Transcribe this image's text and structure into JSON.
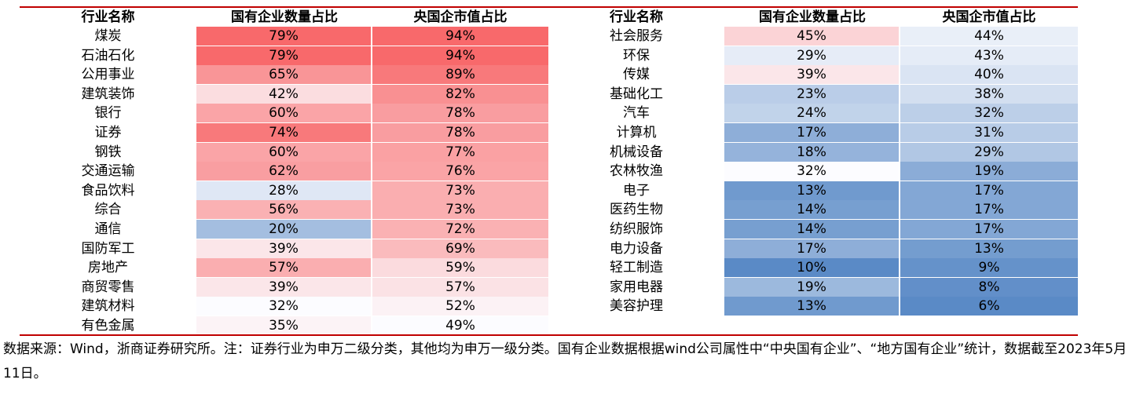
{
  "headers": [
    "行业名称",
    "国有企业数量占比",
    "央国企市值占比"
  ],
  "chart_data": {
    "type": "table",
    "columns": [
      "行业名称",
      "国有企业数量占比",
      "央国企市值占比"
    ],
    "left": [
      {
        "industry": "煤炭",
        "soe_count": "79%",
        "soe_mv": "94%"
      },
      {
        "industry": "石油石化",
        "soe_count": "79%",
        "soe_mv": "94%"
      },
      {
        "industry": "公用事业",
        "soe_count": "65%",
        "soe_mv": "89%"
      },
      {
        "industry": "建筑装饰",
        "soe_count": "42%",
        "soe_mv": "82%"
      },
      {
        "industry": "银行",
        "soe_count": "60%",
        "soe_mv": "78%"
      },
      {
        "industry": "证券",
        "soe_count": "74%",
        "soe_mv": "78%"
      },
      {
        "industry": "钢铁",
        "soe_count": "60%",
        "soe_mv": "77%"
      },
      {
        "industry": "交通运输",
        "soe_count": "62%",
        "soe_mv": "76%"
      },
      {
        "industry": "食品饮料",
        "soe_count": "28%",
        "soe_mv": "73%"
      },
      {
        "industry": "综合",
        "soe_count": "56%",
        "soe_mv": "73%"
      },
      {
        "industry": "通信",
        "soe_count": "20%",
        "soe_mv": "72%"
      },
      {
        "industry": "国防军工",
        "soe_count": "39%",
        "soe_mv": "69%"
      },
      {
        "industry": "房地产",
        "soe_count": "57%",
        "soe_mv": "59%"
      },
      {
        "industry": "商贸零售",
        "soe_count": "39%",
        "soe_mv": "57%"
      },
      {
        "industry": "建筑材料",
        "soe_count": "32%",
        "soe_mv": "52%"
      },
      {
        "industry": "有色金属",
        "soe_count": "35%",
        "soe_mv": "49%"
      }
    ],
    "right": [
      {
        "industry": "社会服务",
        "soe_count": "45%",
        "soe_mv": "44%"
      },
      {
        "industry": "环保",
        "soe_count": "29%",
        "soe_mv": "43%"
      },
      {
        "industry": "传媒",
        "soe_count": "39%",
        "soe_mv": "40%"
      },
      {
        "industry": "基础化工",
        "soe_count": "23%",
        "soe_mv": "38%"
      },
      {
        "industry": "汽车",
        "soe_count": "24%",
        "soe_mv": "32%"
      },
      {
        "industry": "计算机",
        "soe_count": "17%",
        "soe_mv": "31%"
      },
      {
        "industry": "机械设备",
        "soe_count": "18%",
        "soe_mv": "29%"
      },
      {
        "industry": "农林牧渔",
        "soe_count": "32%",
        "soe_mv": "19%"
      },
      {
        "industry": "电子",
        "soe_count": "13%",
        "soe_mv": "17%"
      },
      {
        "industry": "医药生物",
        "soe_count": "14%",
        "soe_mv": "17%"
      },
      {
        "industry": "纺织服饰",
        "soe_count": "14%",
        "soe_mv": "17%"
      },
      {
        "industry": "电力设备",
        "soe_count": "17%",
        "soe_mv": "13%"
      },
      {
        "industry": "轻工制造",
        "soe_count": "10%",
        "soe_mv": "9%"
      },
      {
        "industry": "家用电器",
        "soe_count": "19%",
        "soe_mv": "8%"
      },
      {
        "industry": "美容护理",
        "soe_count": "13%",
        "soe_mv": "6%"
      }
    ]
  },
  "colors": {
    "high": "#f8696b",
    "mid": "#fcfcff",
    "low": "#5a8ac6",
    "rule": "#c00000"
  },
  "note": "数据来源：Wind，浙商证券研究所。注：证券行业为申万二级分类，其他均为申万一级分类。国有企业数据根据wind公司属性中“中央国有企业”、“地方国有企业”统计，数据截至2023年5月11日。"
}
